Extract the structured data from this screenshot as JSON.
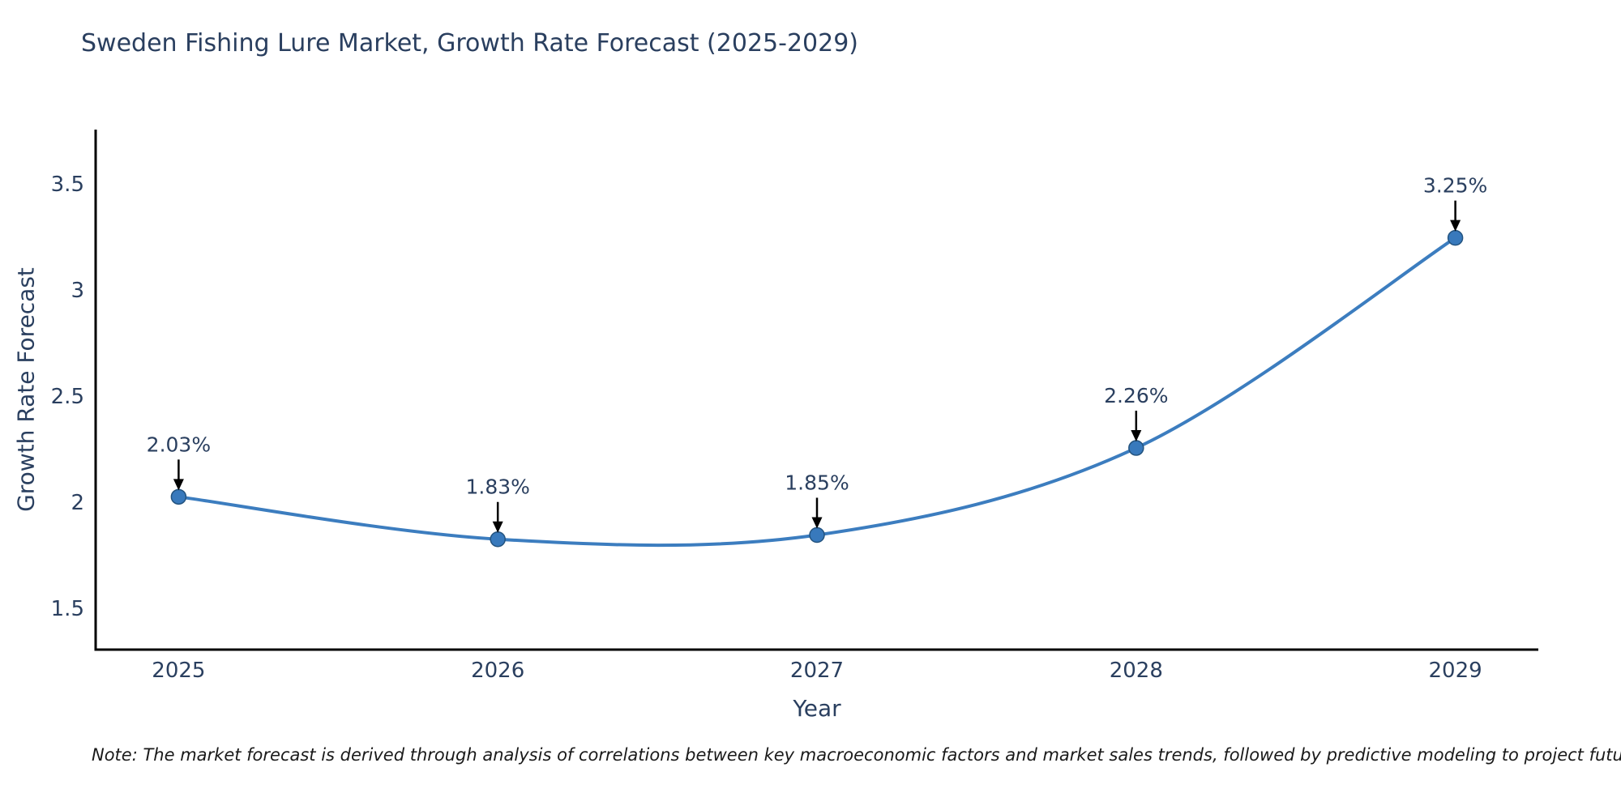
{
  "title": "Sweden Fishing Lure Market, Growth Rate Forecast (2025-2029)",
  "note": "Note: The market forecast is derived through analysis of correlations between key macroeconomic factors and market sales trends, followed by predictive modeling to project future sales",
  "chart_data": {
    "type": "line",
    "x": [
      2025,
      2026,
      2027,
      2028,
      2029
    ],
    "values": [
      2.03,
      1.83,
      1.85,
      2.26,
      3.25
    ],
    "point_labels": [
      "2.03%",
      "1.83%",
      "1.85%",
      "2.26%",
      "3.25%"
    ],
    "title": "Sweden Fishing Lure Market, Growth Rate Forecast (2025-2029)",
    "xlabel": "Year",
    "ylabel": "Growth Rate Forecast",
    "xticks": [
      "2025",
      "2026",
      "2027",
      "2028",
      "2029"
    ],
    "yticks": [
      1.5,
      2,
      2.5,
      3,
      3.5
    ],
    "xlim": [
      2024.74,
      2029.26
    ],
    "ylim": [
      1.31,
      3.76
    ],
    "grid": false,
    "legend": "none",
    "line_shape": "spline"
  },
  "colors": {
    "line": "#3c7dbf",
    "marker_fill": "#3879bc",
    "marker_edge": "#23537f",
    "axis": "#000000",
    "label_text": "#2a3f5f",
    "arrow": "#000000",
    "note_text": "#1a1a1a",
    "background": "#ffffff"
  }
}
